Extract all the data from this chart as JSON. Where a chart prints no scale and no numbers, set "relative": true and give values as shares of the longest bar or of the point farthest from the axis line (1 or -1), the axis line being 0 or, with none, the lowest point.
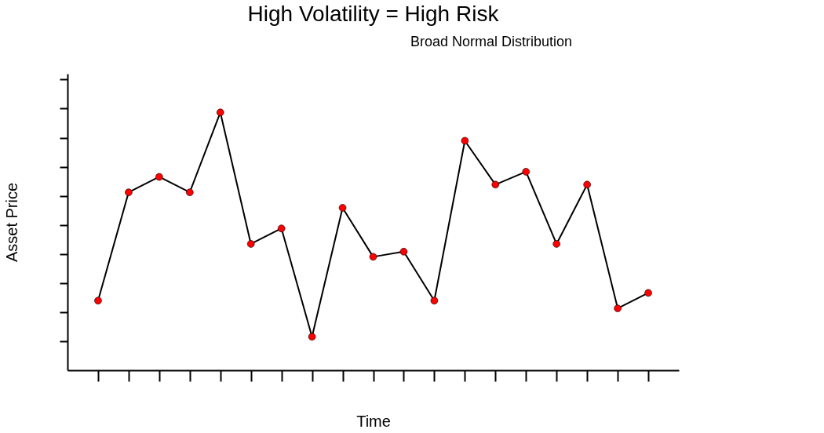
{
  "chart_data": {
    "type": "line",
    "title": "High Volatility = High Risk",
    "xlabel": "Time",
    "ylabel": "Asset Price",
    "relative": true,
    "tick_labels": false,
    "grid": false,
    "categories": [
      null,
      null,
      null,
      null,
      null,
      null,
      null,
      null,
      null,
      null,
      null,
      null,
      null,
      null,
      null,
      null,
      null,
      null,
      null
    ],
    "series": [
      {
        "type": "line",
        "color": "#000000",
        "marker": "circle",
        "colors": [
          "#ff0000",
          "#ff0000",
          "#ff0000",
          "#ff0000",
          "#ff0000",
          "#ff0000",
          "#ff0000",
          "#ff0000",
          "#ff0000",
          "#ff0000",
          "#ff0000",
          "#ff0000",
          "#ff0000",
          "#ff0000",
          "#ff0000",
          "#ff0000",
          "#ff0000",
          "#ff0000",
          "#ff0000"
        ],
        "values": [
          0.27,
          0.69,
          0.75,
          0.69,
          1,
          0.49,
          0.55,
          0.13,
          0.63,
          0.44,
          0.46,
          0.27,
          0.89,
          0.72,
          0.77,
          0.49,
          0.72,
          0.24,
          0.3
        ]
      }
    ],
    "annotations": [
      "Broad Normal Distribution"
    ]
  }
}
